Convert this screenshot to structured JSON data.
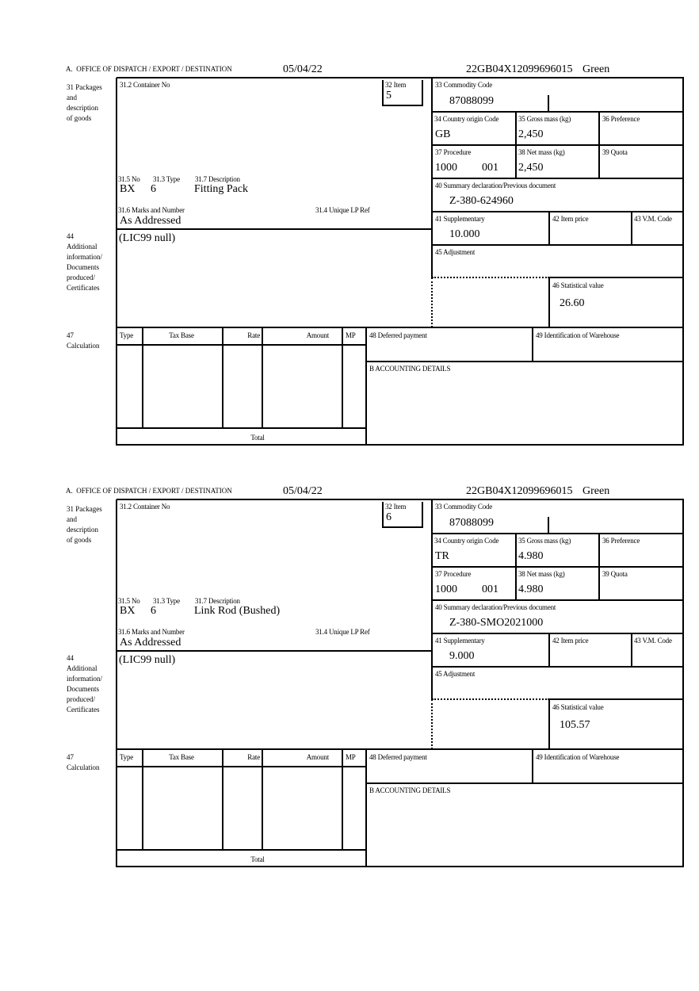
{
  "labels": {
    "office": "A.  OFFICE OF DISPATCH / EXPORT / DESTINATION",
    "packages": "31 Packages\nand\ndescription\nof goods",
    "container_no": "31.2 Container No",
    "item": "32 Item",
    "no": "31.5 No",
    "type": "31.3 Type",
    "description": "31.7 Description",
    "marks": "31.6 Marks and Number",
    "unique_lp_ref": "31.4 Unique LP Ref",
    "additional_info": "44\nAdditional\ninformation/\nDocuments\nproduced/\nCertificates",
    "commodity_code": "33 Commodity Code",
    "country_origin": "34 Country origin Code",
    "gross_mass": "35 Gross mass (kg)",
    "preference": "36 Preference",
    "procedure": "37 Procedure",
    "net_mass": "38 Net mass (kg)",
    "quota": "39 Quota",
    "summary_declaration": "40 Summary declaration/Previous document",
    "supplementary": "41 Supplementary",
    "item_price": "42 Item price",
    "vm_code": "43 V.M. Code",
    "adjustment": "45 Adjustment",
    "statistical_value": "46 Statistical value",
    "calculation": "47\nCalculation",
    "col_type": "Type",
    "col_tax_base": "Tax Base",
    "col_rate": "Rate",
    "col_amount": "Amount",
    "col_mp": "MP",
    "deferred_payment": "48 Deferred payment",
    "warehouse_id": "49 Identification of Warehouse",
    "accounting_details": "B ACCOUNTING DETAILS",
    "total": "Total"
  },
  "forms": [
    {
      "date": "05/04/22",
      "reference": "22GB04X12099696015",
      "route": "Green",
      "item": "5",
      "package_kind": "BX",
      "package_count": "6",
      "description": "Fitting Pack",
      "marks": "As Addressed",
      "additional_info": "(LIC99 null)",
      "commodity_code": "87088099",
      "country_origin": "GB",
      "gross_mass": "2,450",
      "procedure": "1000",
      "procedure_additional": "001",
      "net_mass": "2,450",
      "summary_declaration": "Z-380-624960",
      "supplementary": "10.000",
      "statistical_value": "26.60"
    },
    {
      "date": "05/04/22",
      "reference": "22GB04X12099696015",
      "route": "Green",
      "item": "6",
      "package_kind": "BX",
      "package_count": "6",
      "description": "Link Rod (Bushed)",
      "marks": "As Addressed",
      "additional_info": "(LIC99 null)",
      "commodity_code": "87088099",
      "country_origin": "TR",
      "gross_mass": "4.980",
      "procedure": "1000",
      "procedure_additional": "001",
      "net_mass": "4.980",
      "summary_declaration": "Z-380-SMO2021000",
      "supplementary": "9.000",
      "statistical_value": "105.57"
    }
  ]
}
